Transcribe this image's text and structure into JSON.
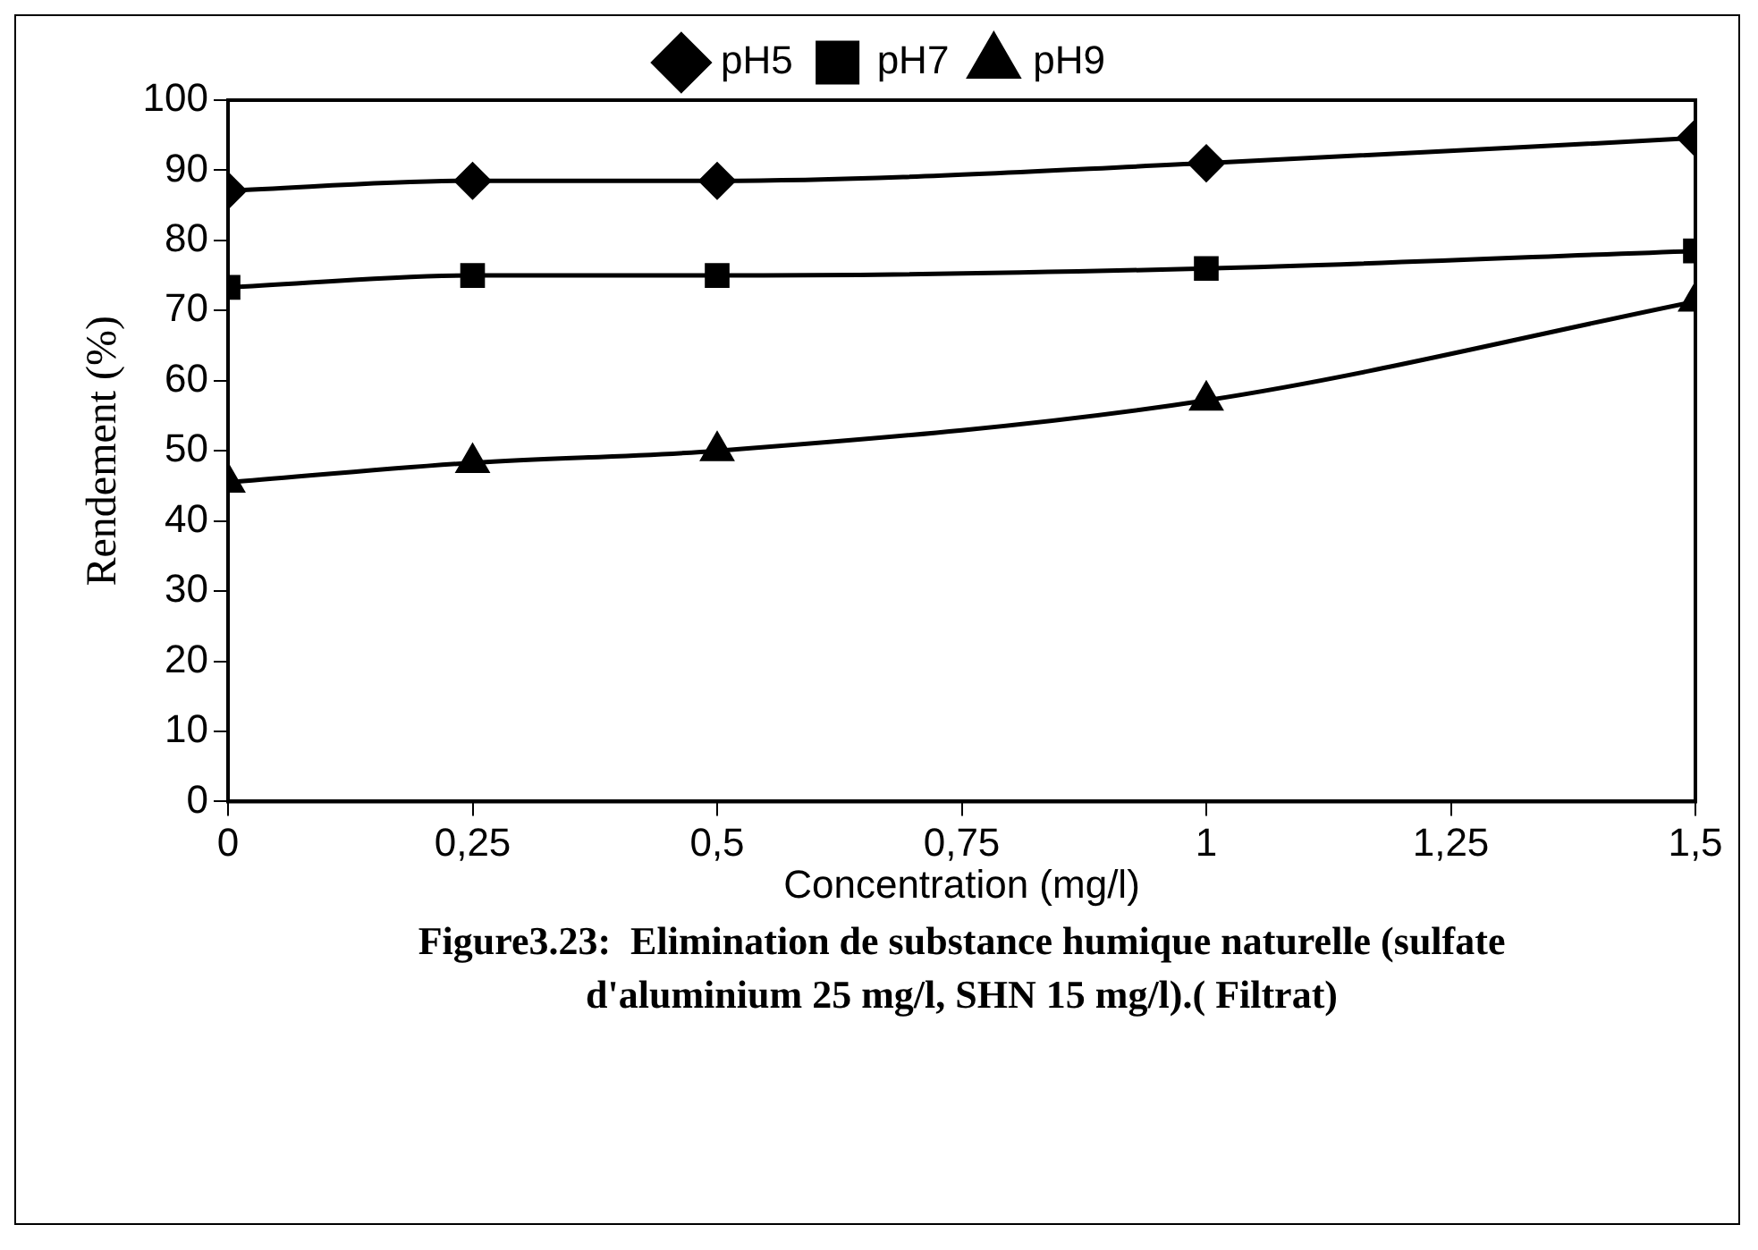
{
  "chart_data": {
    "type": "line",
    "xlabel": "Concentration (mg/l)",
    "ylabel": "Rendement (%)",
    "x": [
      0,
      0.25,
      0.5,
      1,
      1.5
    ],
    "series": [
      {
        "name": "pH5",
        "color": "#000000",
        "marker": "diamond",
        "values": [
          87.1,
          88.5,
          88.5,
          91,
          94.6
        ]
      },
      {
        "name": "pH7",
        "color": "#000000",
        "marker": "square",
        "values": [
          73.3,
          75,
          75,
          76,
          78.5
        ]
      },
      {
        "name": "pH9",
        "color": "#000000",
        "marker": "triangle",
        "values": [
          45.5,
          48.3,
          50,
          57.2,
          71.3
        ]
      }
    ],
    "xlim": [
      0,
      1.5
    ],
    "xticks": [
      0,
      {
        "value": 0.25,
        "label": "0,25"
      },
      {
        "value": 0.5,
        "label": "0,5"
      },
      {
        "value": 0.75,
        "label": "0,75"
      },
      1,
      {
        "value": 1.25,
        "label": "1,25"
      },
      {
        "value": 1.5,
        "label": "1,5"
      }
    ],
    "ylim": [
      0,
      100
    ],
    "yticks": [
      0,
      10,
      20,
      30,
      40,
      50,
      60,
      70,
      80,
      90,
      100
    ],
    "grid": false,
    "legend": "top",
    "line_style": "solid",
    "annotations": [
      "Figure3.23:  Elimination de substance humique naturelle (sulfate d'aluminium 25 mg/l, SHN 15 mg/l).( Filtrat)"
    ]
  }
}
